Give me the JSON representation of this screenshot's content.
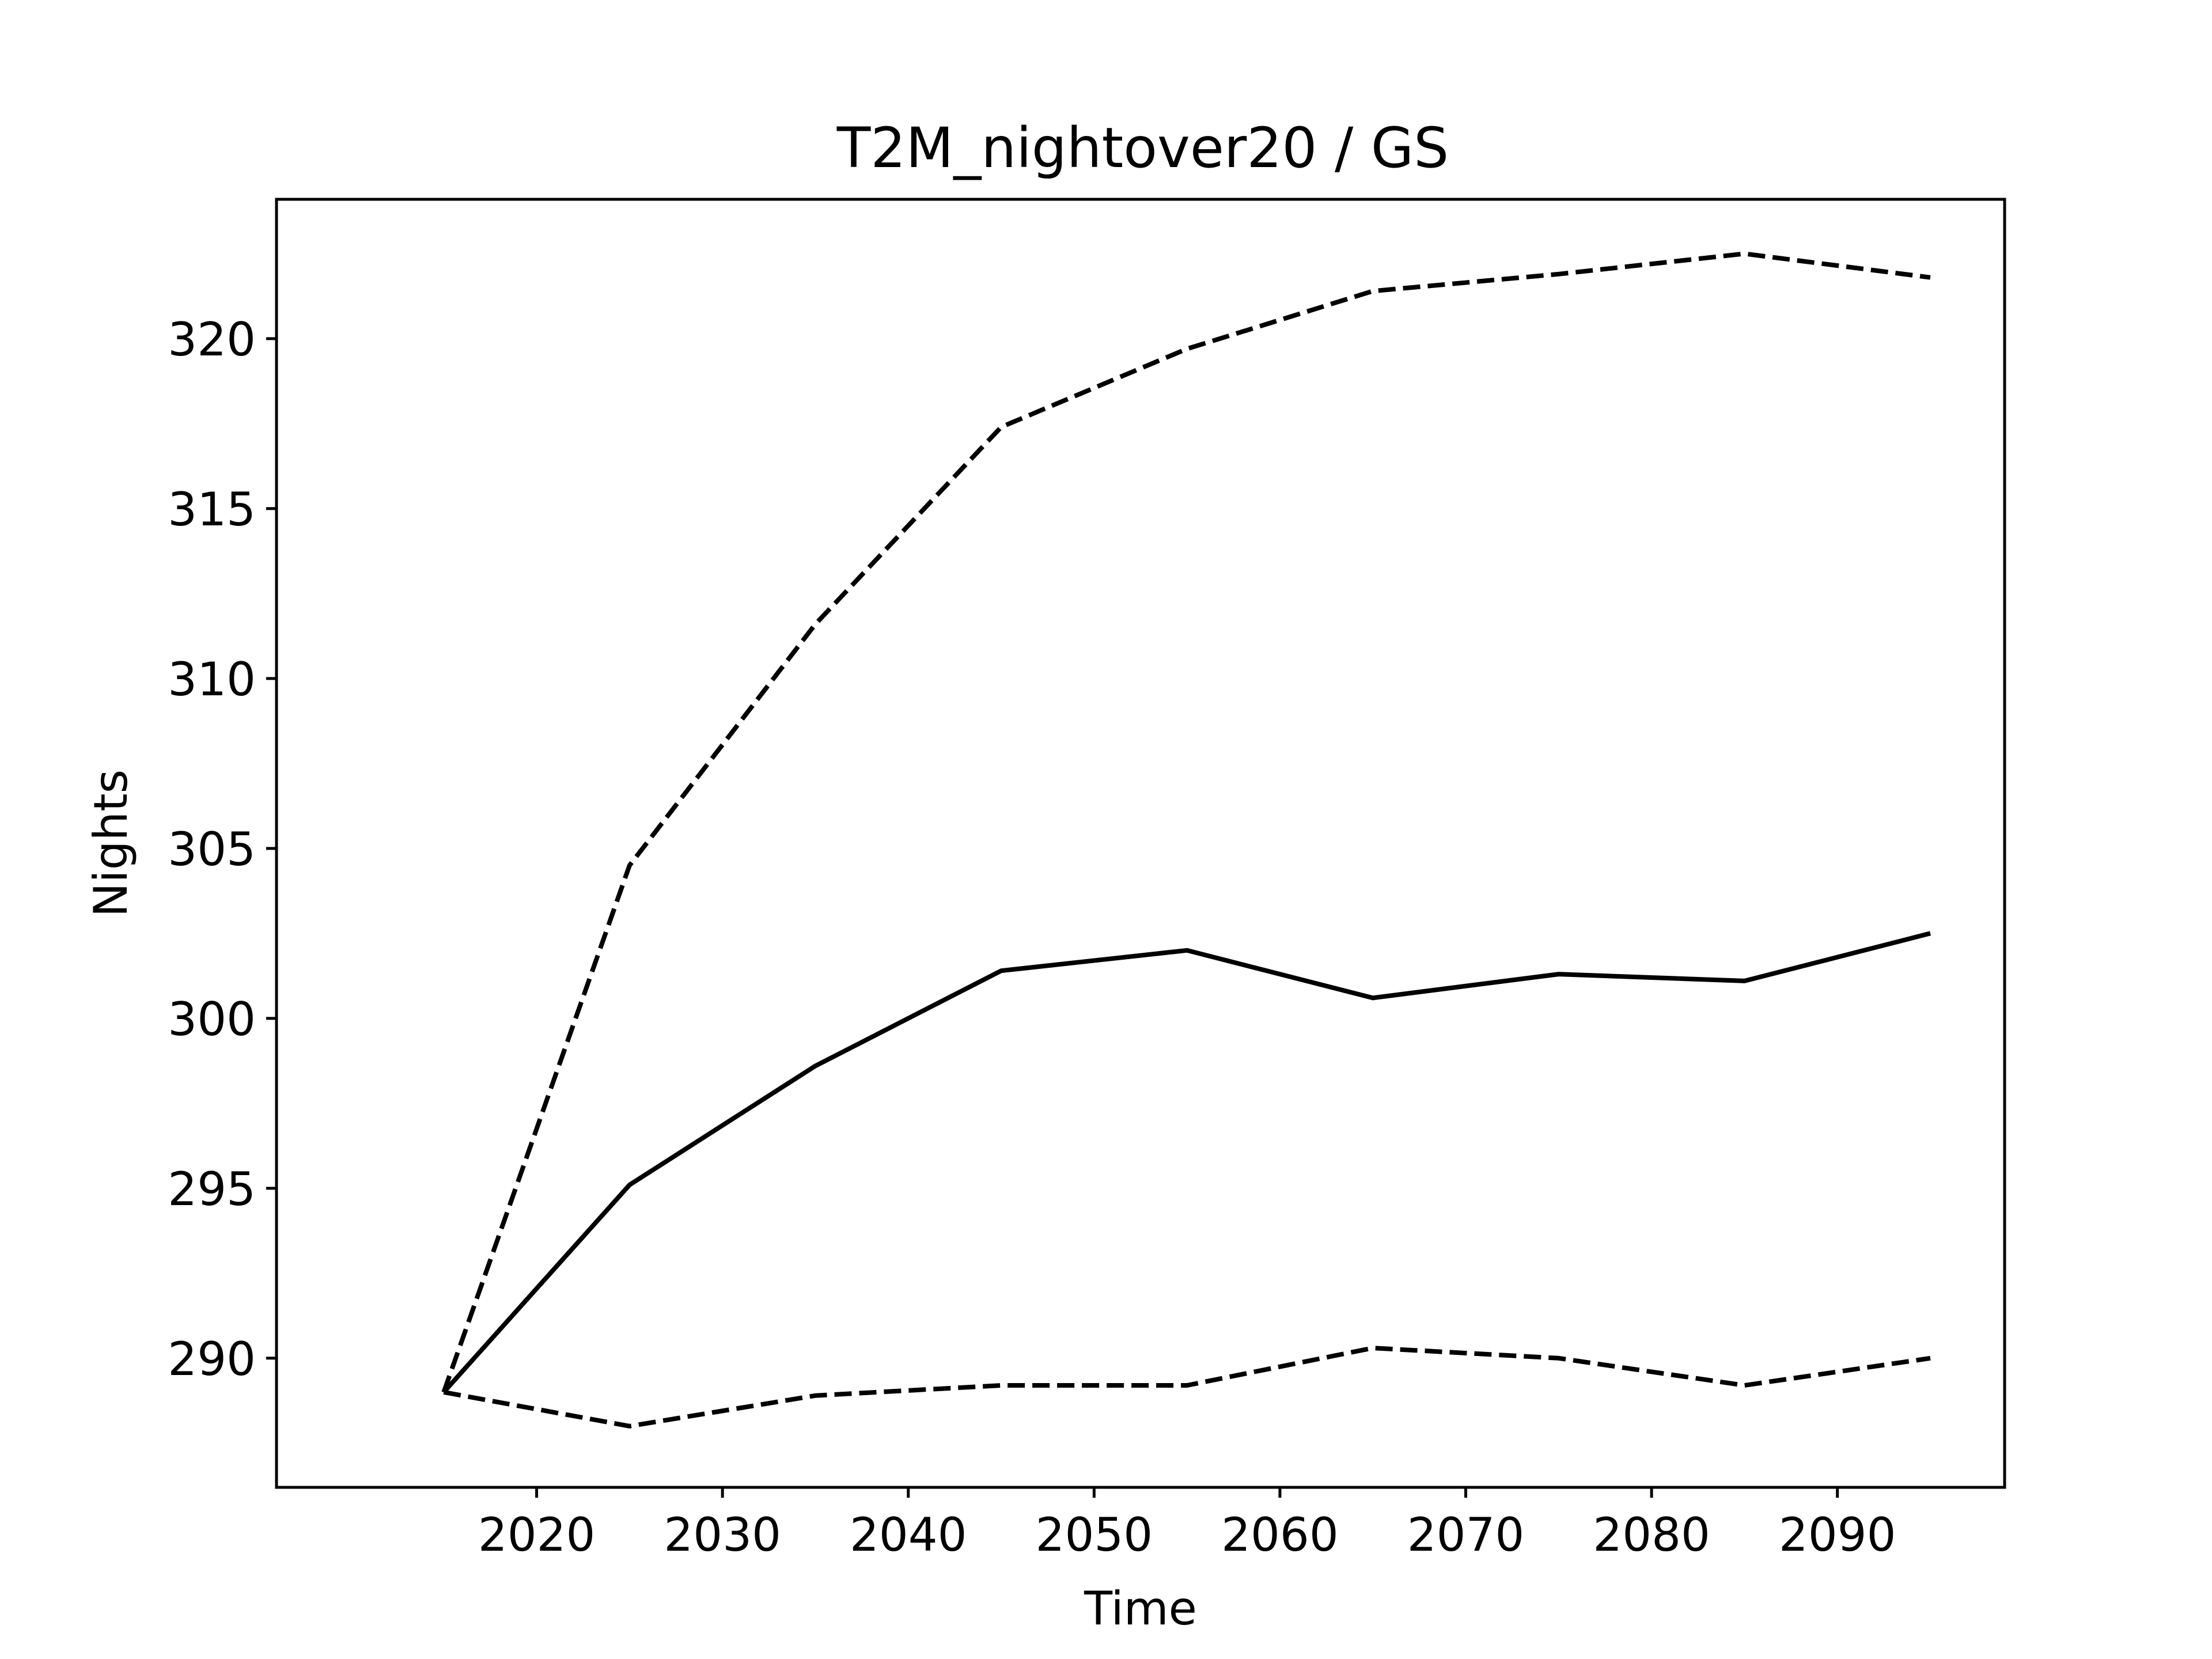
{
  "chart_data": {
    "type": "line",
    "title": "T2M_nightover20 / GS",
    "xlabel": "Time",
    "ylabel": "Nights",
    "x": [
      2015,
      2025,
      2035,
      2045,
      2055,
      2065,
      2075,
      2085,
      2095
    ],
    "xlim": [
      2006,
      2099
    ],
    "ylim": [
      286.2,
      324.1
    ],
    "xticks": [
      2020,
      2030,
      2040,
      2050,
      2060,
      2070,
      2080,
      2090
    ],
    "xtick_labels": [
      "2020",
      "2030",
      "2040",
      "2050",
      "2060",
      "2070",
      "2080",
      "2090"
    ],
    "yticks": [
      290,
      295,
      300,
      305,
      310,
      315,
      320
    ],
    "ytick_labels": [
      "290",
      "295",
      "300",
      "305",
      "310",
      "315",
      "320"
    ],
    "grid": false,
    "legend": "none",
    "series": [
      {
        "style": "solid",
        "color": "#000000",
        "values": [
          289.0,
          295.1,
          298.6,
          301.4,
          302.0,
          300.6,
          301.3,
          301.1,
          302.5
        ]
      },
      {
        "style": "dashed",
        "color": "#000000",
        "values": [
          289.0,
          304.5,
          311.6,
          317.4,
          319.7,
          321.4,
          321.9,
          322.5,
          321.8
        ]
      },
      {
        "style": "dashed",
        "color": "#000000",
        "values": [
          289.0,
          288.0,
          288.9,
          289.2,
          289.2,
          290.3,
          290.0,
          289.2,
          290.0
        ]
      }
    ]
  }
}
